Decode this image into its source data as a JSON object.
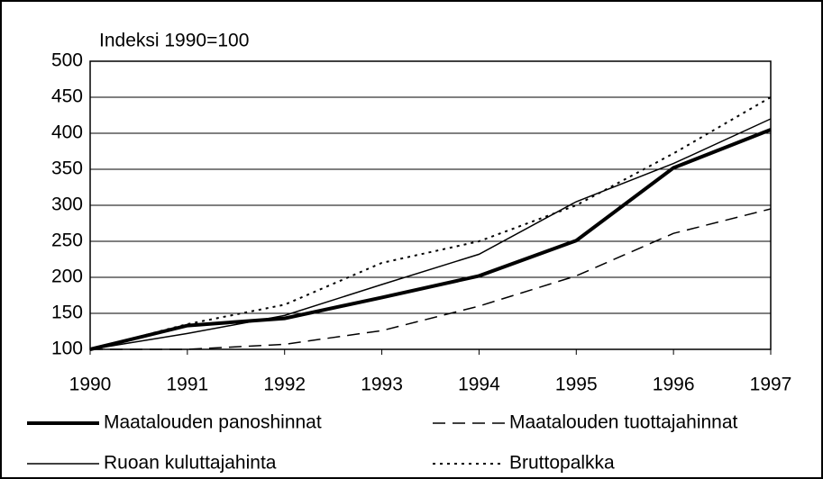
{
  "chart_data": {
    "type": "line",
    "title": "Indeksi 1990=100",
    "x": [
      1990,
      1991,
      1992,
      1993,
      1994,
      1995,
      1996,
      1997
    ],
    "xlim": [
      1990,
      1997
    ],
    "xticks": [
      1990,
      1991,
      1992,
      1993,
      1994,
      1995,
      1996,
      1997
    ],
    "ylim": [
      100,
      500
    ],
    "yticks": [
      100,
      150,
      200,
      250,
      300,
      350,
      400,
      450,
      500
    ],
    "grid": true,
    "legend": "bottom",
    "series": [
      {
        "name": "Maatalouden panoshinnat",
        "color": "#000000",
        "width": 4,
        "dash": "none",
        "values": [
          100,
          133,
          143,
          172,
          202,
          251,
          352,
          405
        ]
      },
      {
        "name": "Maatalouden tuottajahinnat",
        "color": "#000000",
        "width": 1.5,
        "dash": "14,8",
        "values": [
          100,
          100,
          107,
          126,
          160,
          202,
          261,
          295
        ]
      },
      {
        "name": "Ruoan kuluttajahinta",
        "color": "#000000",
        "width": 1.5,
        "dash": "none",
        "values": [
          100,
          122,
          147,
          190,
          232,
          305,
          358,
          420
        ]
      },
      {
        "name": "Bruttopalkka",
        "color": "#000000",
        "width": 2,
        "dash": "3,5",
        "values": [
          100,
          135,
          162,
          220,
          250,
          300,
          372,
          450
        ]
      }
    ]
  }
}
